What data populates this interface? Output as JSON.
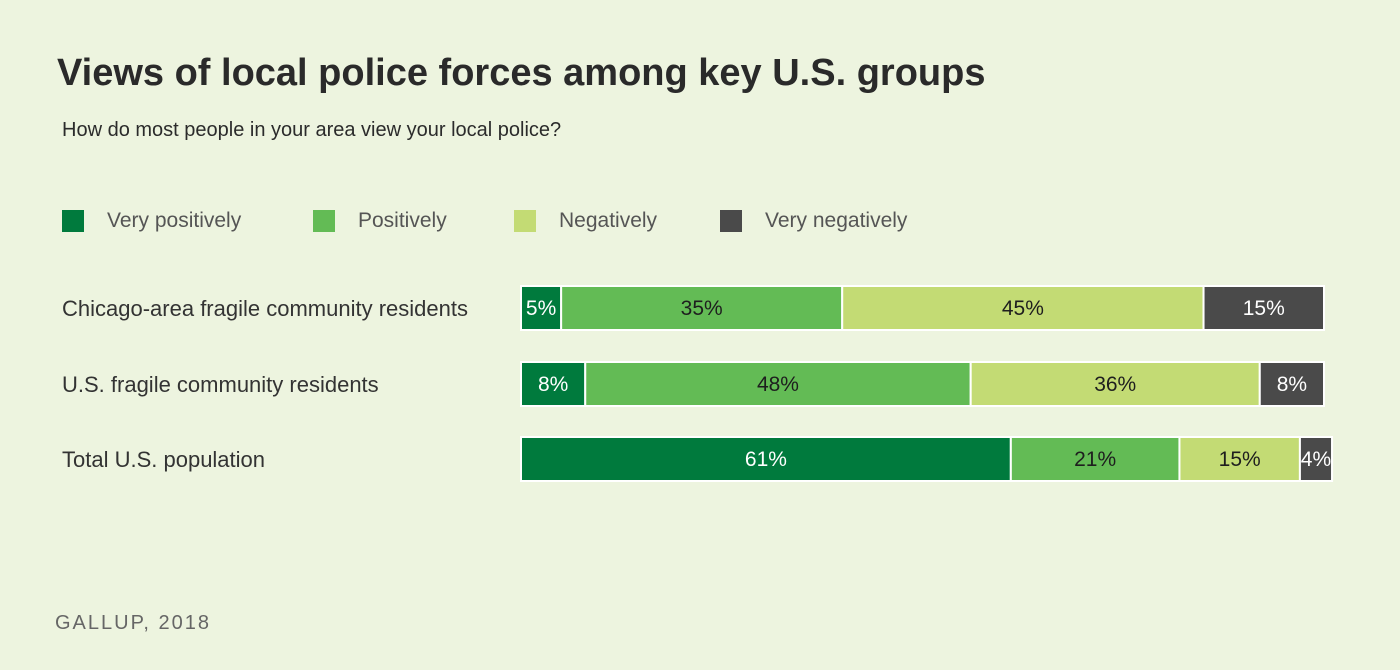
{
  "header": {
    "title": "Views of local police forces among key U.S. groups",
    "subtitle": "How do most people in your area view your local police?"
  },
  "legend": [
    {
      "label": "Very positively",
      "color": "#007a3d"
    },
    {
      "label": "Positively",
      "color": "#63bb55"
    },
    {
      "label": "Negatively",
      "color": "#c3db74"
    },
    {
      "label": "Very negatively",
      "color": "#4a4a4a"
    }
  ],
  "source": "GALLUP, 2018",
  "chart_data": {
    "type": "bar",
    "orientation": "horizontal",
    "stacked": true,
    "categories": [
      "Chicago-area fragile community residents",
      "U.S. fragile community residents",
      "Total U.S. population"
    ],
    "series": [
      {
        "name": "Very positively",
        "color": "#007a3d",
        "values": [
          5,
          8,
          61
        ],
        "labels": [
          "5%",
          "8%",
          "61%"
        ]
      },
      {
        "name": "Positively",
        "color": "#63bb55",
        "values": [
          35,
          48,
          21
        ],
        "labels": [
          "35%",
          "48%",
          "21%"
        ]
      },
      {
        "name": "Negatively",
        "color": "#c3db74",
        "values": [
          45,
          36,
          15
        ],
        "labels": [
          "45%",
          "36%",
          "15%"
        ]
      },
      {
        "name": "Very negatively",
        "color": "#4a4a4a",
        "values": [
          15,
          8,
          4
        ],
        "labels": [
          "15%",
          "8%",
          "4%"
        ]
      }
    ],
    "unit": "%",
    "grid": false,
    "legend_position": "top"
  }
}
